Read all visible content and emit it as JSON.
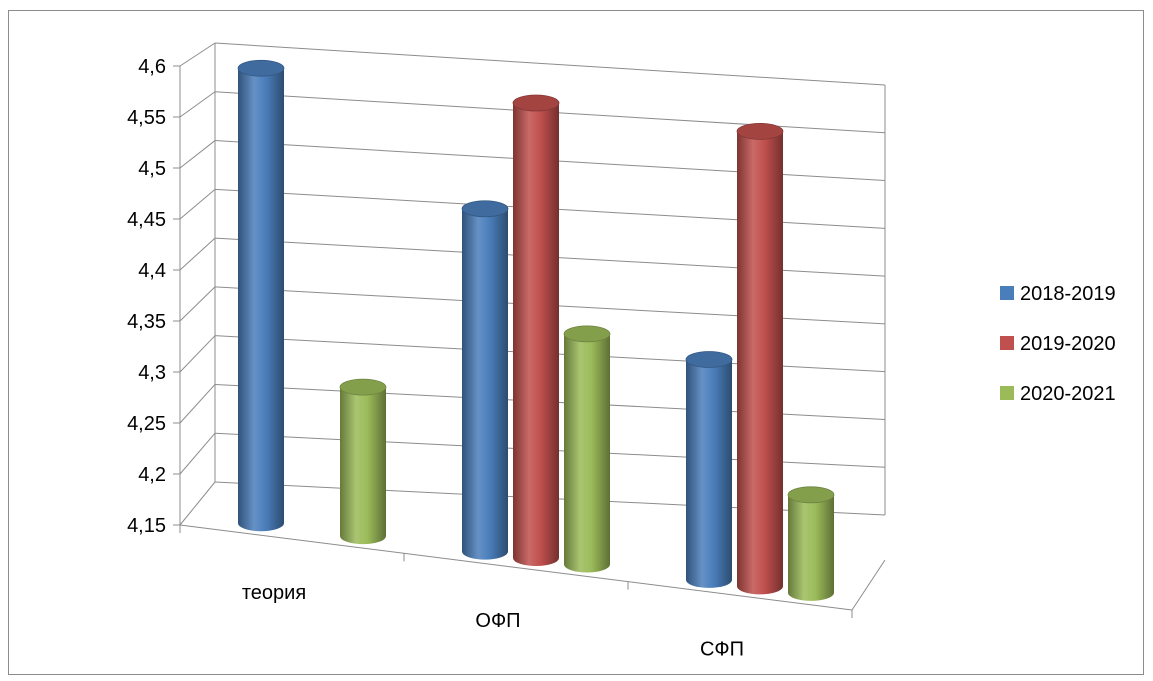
{
  "chart_data": {
    "type": "bar",
    "style": "3d-cylinder",
    "categories": [
      "теория",
      "ОФП",
      "СФП"
    ],
    "series": [
      {
        "name": "2018-2019",
        "color": "#4a7ebb",
        "values": [
          4.6,
          4.49,
          4.37
        ]
      },
      {
        "name": "2019-2020",
        "color": "#c0504d",
        "values": [
          null,
          4.6,
          4.6
        ]
      },
      {
        "name": "2020-2021",
        "color": "#9bbb59",
        "values": [
          4.3,
          4.38,
          4.25
        ]
      }
    ],
    "ylim": [
      4.15,
      4.6
    ],
    "yticks": [
      "4,15",
      "4,2",
      "4,25",
      "4,3",
      "4,35",
      "4,4",
      "4,45",
      "4,5",
      "4,55",
      "4,6"
    ],
    "ytick_values": [
      4.15,
      4.2,
      4.25,
      4.3,
      4.35,
      4.4,
      4.45,
      4.5,
      4.55,
      4.6
    ],
    "grid": true,
    "legend": "right",
    "title": "",
    "xlabel": "",
    "ylabel": ""
  }
}
